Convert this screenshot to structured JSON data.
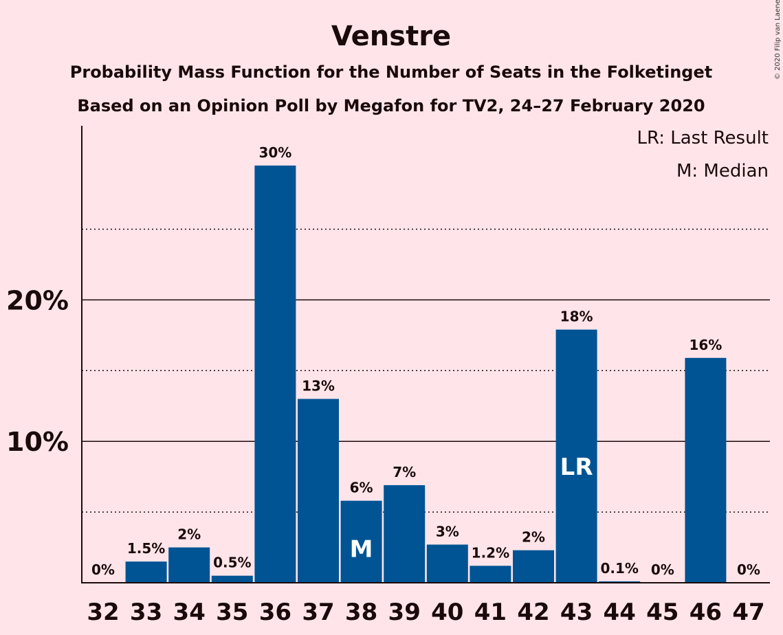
{
  "chart_data": {
    "type": "bar",
    "title": "Venstre",
    "subtitle": "Probability Mass Function for the Number of Seats in the Folketinget",
    "subtitle2": "Based on an Opinion Poll by Megafon for TV2, 24–27 February 2020",
    "copyright": "© 2020 Filip van Laenen",
    "legend": [
      "LR: Last Result",
      "M: Median"
    ],
    "legend_position": "top-right",
    "categories": [
      "32",
      "33",
      "34",
      "35",
      "36",
      "37",
      "38",
      "39",
      "40",
      "41",
      "42",
      "43",
      "44",
      "45",
      "46",
      "47"
    ],
    "values": [
      0,
      1.5,
      2.5,
      0.5,
      29.5,
      13,
      5.8,
      6.9,
      2.7,
      1.2,
      2.3,
      17.9,
      0.1,
      0,
      15.9,
      0
    ],
    "labels": [
      "0%",
      "1.5%",
      "2%",
      "0.5%",
      "30%",
      "13%",
      "6%",
      "7%",
      "3%",
      "1.2%",
      "2%",
      "18%",
      "0.1%",
      "0%",
      "16%",
      "0%"
    ],
    "markers": {
      "38": "M",
      "43": "LR"
    },
    "ylim": [
      0,
      32
    ],
    "yticks": [
      {
        "value": 10,
        "label": "10%"
      },
      {
        "value": 20,
        "label": "20%"
      }
    ],
    "minor_gridlines": [
      5,
      15,
      25
    ],
    "bar_color": "#005494",
    "background": "#FFE5EA"
  }
}
